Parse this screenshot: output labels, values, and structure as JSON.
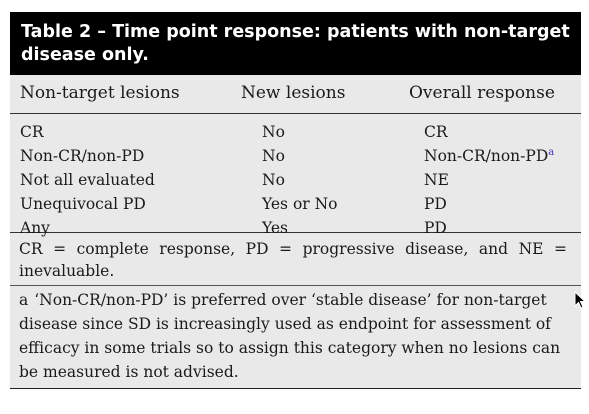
{
  "table": {
    "title": "Table 2 – Time point response: patients with non-target disease only.",
    "headers": [
      "Non-target lesions",
      "New lesions",
      "Overall response"
    ],
    "rows": [
      [
        "CR",
        "No",
        "CR"
      ],
      [
        "Non-CR/non-PD",
        "No",
        "Non-CR/non-PD"
      ],
      [
        "Not all evaluated",
        "No",
        "NE"
      ],
      [
        "Unequivocal PD",
        "Yes or No",
        "PD"
      ],
      [
        "Any",
        "Yes",
        "PD"
      ]
    ],
    "row2_superscript": "a",
    "abbrev_note": "CR = complete response, PD = progressive disease, and NE = inevaluable.",
    "footnote_mark": "a",
    "footnote_text": "‘Non-CR/non-PD’ is preferred over ‘stable disease’ for non-target disease since SD is increasingly used as endpoint for assessment of efficacy in some trials so to assign this category when no lesions can be measured is not advised."
  },
  "colors": {
    "title_bg": "#000000",
    "title_fg": "#ffffff",
    "table_bg": "#e9e9e9",
    "superscript": "#3a3ab0"
  },
  "icons": {
    "cursor": "mouse-pointer-icon"
  }
}
